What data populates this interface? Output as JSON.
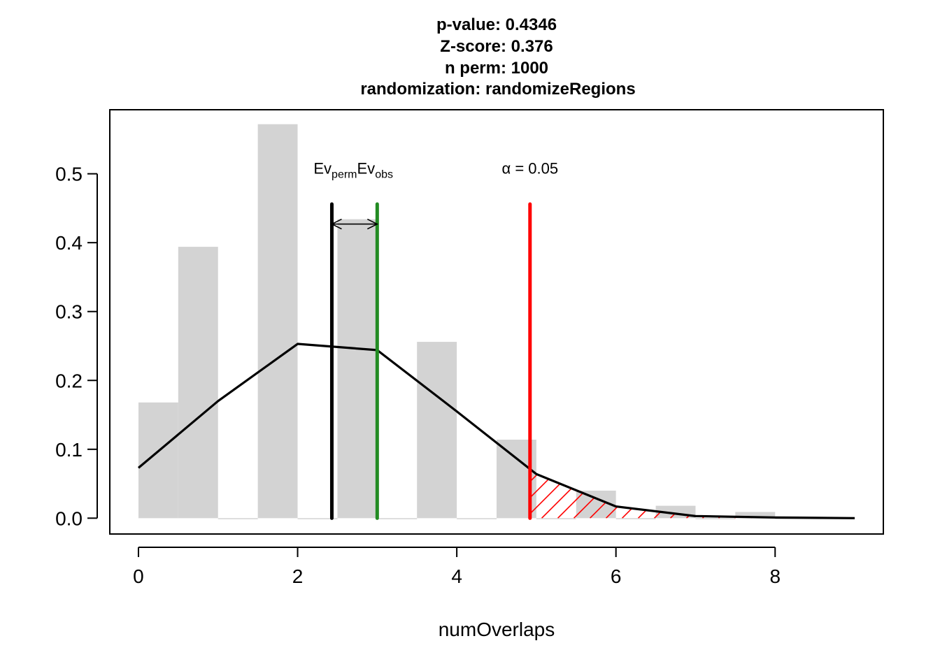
{
  "chart_data": {
    "type": "bar",
    "title_lines": [
      "p-value:  0.4346",
      "Z-score:  0.376",
      "n perm:  1000",
      "randomization:  randomizeRegions"
    ],
    "xlabel": "numOverlaps",
    "ylabel": "",
    "xlim": [
      -0.36,
      9.36
    ],
    "ylim": [
      -0.023,
      0.593
    ],
    "x_ticks": [
      0,
      2,
      4,
      6,
      8
    ],
    "y_ticks": [
      0.0,
      0.1,
      0.2,
      0.3,
      0.4,
      0.5
    ],
    "x_tick_labels": [
      "0",
      "2",
      "4",
      "6",
      "8"
    ],
    "y_tick_labels": [
      "0.0",
      "0.1",
      "0.2",
      "0.3",
      "0.4",
      "0.5"
    ],
    "histogram": {
      "bar_color": "#d3d3d3",
      "bins": [
        {
          "x0": 0.0,
          "x1": 0.5,
          "value": 0.168
        },
        {
          "x0": 0.5,
          "x1": 1.0,
          "value": 0.394
        },
        {
          "x0": 1.0,
          "x1": 1.5,
          "value": 0.0
        },
        {
          "x0": 1.5,
          "x1": 2.0,
          "value": 0.572
        },
        {
          "x0": 2.0,
          "x1": 2.5,
          "value": 0.0
        },
        {
          "x0": 2.5,
          "x1": 3.0,
          "value": 0.434
        },
        {
          "x0": 3.0,
          "x1": 3.5,
          "value": 0.0
        },
        {
          "x0": 3.5,
          "x1": 4.0,
          "value": 0.256
        },
        {
          "x0": 4.0,
          "x1": 4.5,
          "value": 0.0
        },
        {
          "x0": 4.5,
          "x1": 5.0,
          "value": 0.114
        },
        {
          "x0": 5.0,
          "x1": 5.5,
          "value": 0.0
        },
        {
          "x0": 5.5,
          "x1": 6.0,
          "value": 0.04
        },
        {
          "x0": 6.0,
          "x1": 6.5,
          "value": 0.0
        },
        {
          "x0": 6.5,
          "x1": 7.0,
          "value": 0.018
        },
        {
          "x0": 7.0,
          "x1": 7.5,
          "value": 0.0
        },
        {
          "x0": 7.5,
          "x1": 8.0,
          "value": 0.009
        },
        {
          "x0": 8.0,
          "x1": 8.5,
          "value": 0.0
        },
        {
          "x0": 8.5,
          "x1": 9.0,
          "value": 0.0
        }
      ]
    },
    "density_line": {
      "color": "#000000",
      "x": [
        0,
        1,
        2,
        3,
        4,
        5,
        6,
        7,
        8,
        9
      ],
      "y": [
        0.073,
        0.17,
        0.253,
        0.244,
        0.155,
        0.064,
        0.017,
        0.003,
        0.001,
        0.0
      ]
    },
    "vertical_lines": [
      {
        "name": "perm-mean",
        "x": 2.43,
        "y_top": 0.456,
        "color": "#000000"
      },
      {
        "name": "observed",
        "x": 3.0,
        "y_top": 0.456,
        "color": "#228b22"
      },
      {
        "name": "alpha-threshold",
        "x": 4.92,
        "y_top": 0.456,
        "color": "#ff0000"
      }
    ],
    "arrow": {
      "x0": 2.43,
      "x1": 3.0,
      "y": 0.427,
      "color": "#000000"
    },
    "hatch_region": {
      "x_start": 4.92,
      "color": "#ff0000"
    },
    "annotations": {
      "ev_label": {
        "x": 2.7,
        "y": 0.5,
        "main1": "Ev",
        "sub1": "perm",
        "main2": "Ev",
        "sub2": "obs"
      },
      "alpha_label": {
        "x": 4.92,
        "y": 0.5,
        "text": "α = 0.05"
      }
    }
  }
}
